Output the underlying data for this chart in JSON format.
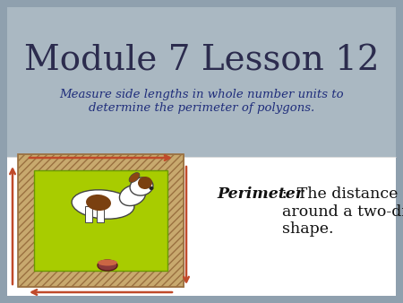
{
  "title": "Module 7 Lesson 12",
  "subtitle": "Measure side lengths in whole number units to\ndetermine the perimeter of polygons.",
  "subtitle_color": "#1f2d7b",
  "title_color": "#2c2c4e",
  "bg_outer_color": "#8fa0ae",
  "bg_top_color": "#aab8c2",
  "bg_bottom_color": "#ffffff",
  "definition_bold": "Perimeter",
  "definition_colon": ":  The distance\naround a two-dimensional\nshape.",
  "definition_color": "#111111",
  "arrow_color": "#c04a2a",
  "grass_color": "#a8cc00",
  "wood_color": "#c8a96e",
  "wood_dark": "#9a7040",
  "wood_inner": "#b8954e"
}
